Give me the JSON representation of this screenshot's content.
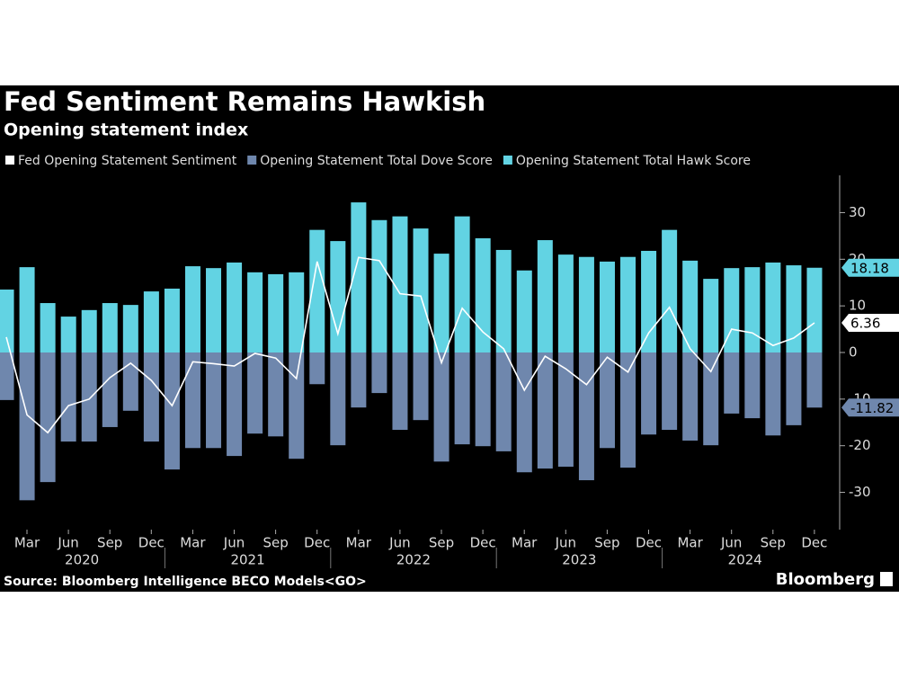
{
  "chart_data": {
    "type": "bar",
    "title": "Fed Sentiment Remains Hawkish",
    "subtitle": "Opening statement index",
    "source": "Source: Bloomberg Intelligence BECO Models<GO>",
    "brand": "Bloomberg",
    "categories": [
      null,
      null,
      null,
      null,
      null,
      null,
      null,
      null,
      null,
      null,
      null,
      null,
      null,
      null,
      null,
      null,
      null,
      null,
      null,
      null,
      null,
      null,
      null,
      null,
      null,
      null,
      null,
      null,
      null,
      null,
      null,
      null,
      null,
      null,
      null,
      null,
      null,
      null,
      null,
      null
    ],
    "month_labels": [
      "Mar",
      "Jun",
      "Sep",
      "Dec",
      "Mar",
      "Jun",
      "Sep",
      "Dec",
      "Mar",
      "Jun",
      "Sep",
      "Dec",
      "Mar",
      "Jun",
      "Sep",
      "Dec",
      "Mar",
      "Jun",
      "Sep",
      "Dec"
    ],
    "year_labels": [
      "2020",
      "2021",
      "2022",
      "2023",
      "2024"
    ],
    "series": [
      {
        "name": "Fed Opening Statement Sentiment",
        "type": "line",
        "color": "#ffffff",
        "values": [
          3.3,
          -13.4,
          -17.2,
          -11.4,
          -10.0,
          -5.4,
          -2.3,
          -6.0,
          -11.4,
          -2.0,
          -2.4,
          -2.9,
          -0.2,
          -1.2,
          -5.6,
          19.5,
          4.0,
          20.4,
          19.7,
          12.6,
          12.1,
          -2.2,
          9.5,
          4.4,
          0.8,
          -8.1,
          -0.8,
          -3.5,
          -6.9,
          -1.0,
          -4.2,
          4.2,
          9.7,
          0.8,
          -4.1,
          5.0,
          4.2,
          1.5,
          3.1,
          6.36
        ]
      },
      {
        "name": "Opening Statement Total Dove Score",
        "type": "bar",
        "color": "#6f87ad",
        "values": [
          -10.2,
          -31.7,
          -27.8,
          -19.1,
          -19.1,
          -16.0,
          -12.5,
          -19.1,
          -25.1,
          -20.5,
          -20.5,
          -22.2,
          -17.4,
          -18.0,
          -22.8,
          -6.8,
          -19.9,
          -11.8,
          -8.7,
          -16.6,
          -14.5,
          -23.4,
          -19.7,
          -20.1,
          -21.2,
          -25.7,
          -24.9,
          -24.5,
          -27.4,
          -20.5,
          -24.7,
          -17.6,
          -16.6,
          -18.9,
          -19.9,
          -13.1,
          -14.1,
          -17.8,
          -15.6,
          -11.82
        ]
      },
      {
        "name": "Opening Statement Total Hawk Score",
        "type": "bar",
        "color": "#62d3e3",
        "values": [
          13.5,
          18.3,
          10.6,
          7.7,
          9.1,
          10.6,
          10.2,
          13.1,
          13.7,
          18.5,
          18.1,
          19.3,
          17.2,
          16.8,
          17.2,
          26.3,
          23.9,
          32.2,
          28.4,
          29.2,
          26.6,
          21.2,
          29.2,
          24.5,
          22.0,
          17.6,
          24.1,
          21.0,
          20.5,
          19.5,
          20.5,
          21.8,
          26.3,
          19.7,
          15.8,
          18.1,
          18.3,
          19.3,
          18.7,
          18.18
        ]
      }
    ],
    "ylim": [
      -38,
      38
    ],
    "yticks": [
      -30,
      -20,
      -10,
      0,
      10,
      20,
      30
    ],
    "legend": "top-left",
    "background": "#000000"
  }
}
